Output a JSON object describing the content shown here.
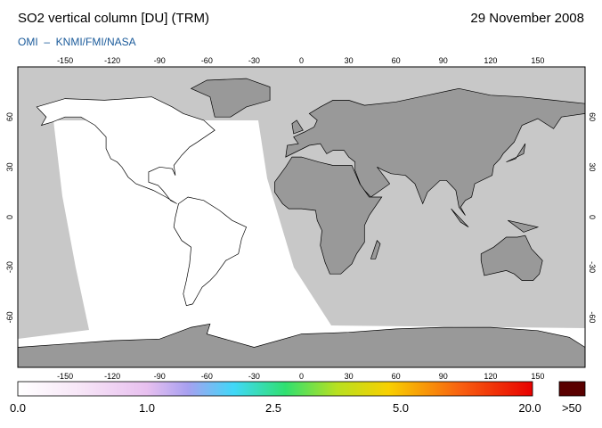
{
  "header": {
    "title": "SO2 vertical column [DU] (TRM)",
    "date": "29 November 2008",
    "subtitle": "OMI  –  KNMI/FMI/NASA"
  },
  "map": {
    "lon_ticks": [
      -150,
      -120,
      -90,
      -60,
      -30,
      0,
      30,
      60,
      90,
      120,
      150
    ],
    "lat_ticks": [
      60,
      30,
      0,
      -30,
      -60
    ]
  },
  "colorbar": {
    "labels": [
      "0.0",
      "1.0",
      "2.5",
      "5.0",
      "20.0",
      ">50"
    ]
  }
}
